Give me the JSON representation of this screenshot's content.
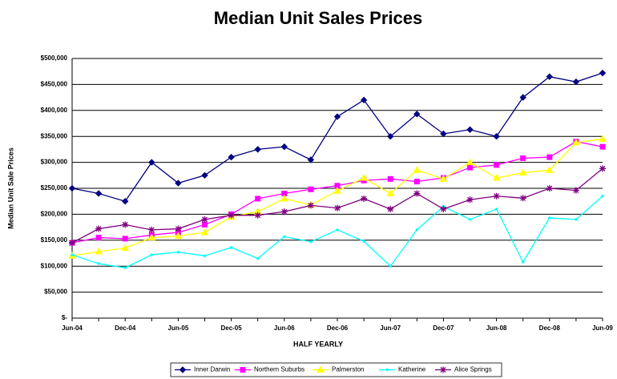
{
  "chart_data": {
    "type": "line",
    "title": "Median Unit Sales Prices",
    "xlabel": "HALF YEARLY",
    "ylabel": "Median Unit Sale Prices",
    "categories": [
      "Jun-04",
      null,
      "Dec-04",
      null,
      "Jun-05",
      null,
      "Dec-05",
      null,
      "Jun-06",
      null,
      "Dec-06",
      null,
      "Jun-07",
      null,
      "Dec-07",
      null,
      "Jun-08",
      null,
      "Dec-08",
      null,
      "Jun-09"
    ],
    "series": [
      {
        "name": "Inner Darwin",
        "color": "#000080",
        "marker": "diamond",
        "values": [
          250000,
          240000,
          225000,
          300000,
          260000,
          275000,
          310000,
          325000,
          330000,
          305000,
          388000,
          420000,
          350000,
          393000,
          355000,
          363000,
          350000,
          425000,
          465000,
          455000,
          472000
        ]
      },
      {
        "name": "Northern Suburbs",
        "color": "#ff00ff",
        "marker": "square",
        "values": [
          145000,
          155000,
          153000,
          160000,
          165000,
          180000,
          200000,
          230000,
          240000,
          248000,
          255000,
          265000,
          268000,
          263000,
          270000,
          290000,
          295000,
          308000,
          310000,
          340000,
          330000
        ]
      },
      {
        "name": "Palmerston",
        "color": "#ffff00",
        "marker": "triangle",
        "values": [
          120000,
          128000,
          135000,
          155000,
          158000,
          165000,
          195000,
          205000,
          230000,
          218000,
          245000,
          270000,
          240000,
          285000,
          268000,
          300000,
          270000,
          280000,
          285000,
          338000,
          345000
        ]
      },
      {
        "name": "Katherine",
        "color": "#00ffff",
        "marker": "none",
        "values": [
          122000,
          105000,
          97000,
          122000,
          127000,
          120000,
          136000,
          115000,
          157000,
          147000,
          170000,
          148000,
          100000,
          170000,
          215000,
          190000,
          210000,
          108000,
          193000,
          190000,
          235000
        ]
      },
      {
        "name": "Alice Springs",
        "color": "#800080",
        "marker": "star",
        "values": [
          145000,
          172000,
          180000,
          170000,
          172000,
          190000,
          198000,
          198000,
          205000,
          217000,
          212000,
          230000,
          210000,
          240000,
          210000,
          228000,
          235000,
          231000,
          250000,
          246000,
          288000
        ]
      }
    ],
    "ylim": [
      0,
      500000
    ],
    "yticks": [
      {
        "value": 0,
        "label": "$-"
      },
      {
        "value": 50000,
        "label": "$50,000"
      },
      {
        "value": 100000,
        "label": "$100,000"
      },
      {
        "value": 150000,
        "label": "$150,000"
      },
      {
        "value": 200000,
        "label": "$200,000"
      },
      {
        "value": 250000,
        "label": "$250,000"
      },
      {
        "value": 300000,
        "label": "$300,000"
      },
      {
        "value": 350000,
        "label": "$350,000"
      },
      {
        "value": 400000,
        "label": "$400,000"
      },
      {
        "value": 450000,
        "label": "$450,000"
      },
      {
        "value": 500000,
        "label": "$500,000"
      }
    ],
    "grid": true,
    "legend": "bottom"
  }
}
